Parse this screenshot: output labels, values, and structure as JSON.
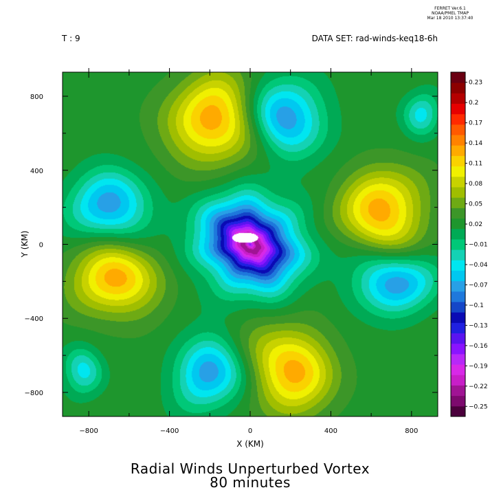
{
  "header": {
    "version_line1": "FERRET  Ver.6.1",
    "version_line2": "NOAA/PMEL TMAP",
    "version_line3": "Mar 18 2010 13:37:40",
    "time_label": "T : 9",
    "dataset_label": "DATA SET: rad-winds-keq18-6h"
  },
  "chart_data": {
    "type": "heatmap",
    "title": "Radial Winds Unperturbed Vortex",
    "subtitle": "80 minutes",
    "xlabel": "X (KM)",
    "ylabel": "Y (KM)",
    "xlim": [
      -930,
      930
    ],
    "ylim": [
      -930,
      930
    ],
    "x_ticks": [
      -800,
      -400,
      0,
      400,
      800
    ],
    "y_ticks": [
      -800,
      -400,
      0,
      400,
      800
    ],
    "x_tick_labels": [
      "−800",
      "−400",
      "0",
      "400",
      "800"
    ],
    "y_tick_labels": [
      "−800",
      "−400",
      "0",
      "400",
      "800"
    ],
    "colorbar": {
      "range": [
        -0.265,
        0.245
      ],
      "levels": [
        -0.25,
        -0.22,
        -0.19,
        -0.16,
        -0.13,
        -0.1,
        -0.07,
        -0.04,
        -0.01,
        0.02,
        0.05,
        0.08,
        0.11,
        0.14,
        0.17,
        0.2,
        0.23
      ],
      "labels": [
        "−0.25",
        "−0.22",
        "−0.19",
        "−0.16",
        "−0.13",
        "−0.1",
        "−0.07",
        "−0.04",
        "−0.01",
        "0.02",
        "0.05",
        "0.08",
        "0.11",
        "0.14",
        "0.17",
        "0.2",
        "0.23"
      ],
      "colors": [
        "#4b003c",
        "#7d0a6e",
        "#a01494",
        "#c81ec8",
        "#d828e8",
        "#b828f8",
        "#8a14ff",
        "#5a14f0",
        "#2020e0",
        "#0a0ab4",
        "#1446c8",
        "#1e78dc",
        "#28a0e6",
        "#00c8f0",
        "#00e6f0",
        "#14d2b4",
        "#00c878",
        "#00aa55",
        "#1e962d",
        "#3c9628",
        "#6eaa14",
        "#a0be00",
        "#c8d200",
        "#f0f000",
        "#fad200",
        "#ffaa00",
        "#ff8200",
        "#ff5a00",
        "#ff2a00",
        "#e60000",
        "#b40000",
        "#8c0000",
        "#6a0012"
      ]
    },
    "features": [
      {
        "x": -670,
        "y": -190,
        "sx": 200,
        "sy": 200,
        "value": 0.13
      },
      {
        "x": 670,
        "y": 190,
        "sx": 200,
        "sy": 200,
        "value": 0.13
      },
      {
        "x": -190,
        "y": 670,
        "sx": 200,
        "sy": 230,
        "value": 0.13
      },
      {
        "x": 190,
        "y": -670,
        "sx": 200,
        "sy": 230,
        "value": 0.13
      },
      {
        "x": 0,
        "y": 0,
        "sx": 230,
        "sy": 230,
        "value": -0.165
      },
      {
        "x": 0,
        "y": 0,
        "sx": 95,
        "sy": 95,
        "value": -0.06
      },
      {
        "x": -700,
        "y": 200,
        "sx": 190,
        "sy": 170,
        "value": -0.075
      },
      {
        "x": 700,
        "y": -200,
        "sx": 190,
        "sy": 170,
        "value": -0.075
      },
      {
        "x": 200,
        "y": 700,
        "sx": 170,
        "sy": 190,
        "value": -0.075
      },
      {
        "x": -200,
        "y": -700,
        "sx": 170,
        "sy": 190,
        "value": -0.075
      },
      {
        "x": -850,
        "y": -700,
        "sx": 90,
        "sy": 120,
        "value": -0.04
      },
      {
        "x": 850,
        "y": 700,
        "sx": 90,
        "sy": 120,
        "value": -0.04
      },
      {
        "x": 0,
        "y": 0,
        "sx": 22,
        "sy": 22,
        "value": 0.1
      }
    ],
    "background_value": 0.022,
    "masked_region": {
      "x": -25,
      "y": 35,
      "rx": 65,
      "ry": 28
    }
  }
}
